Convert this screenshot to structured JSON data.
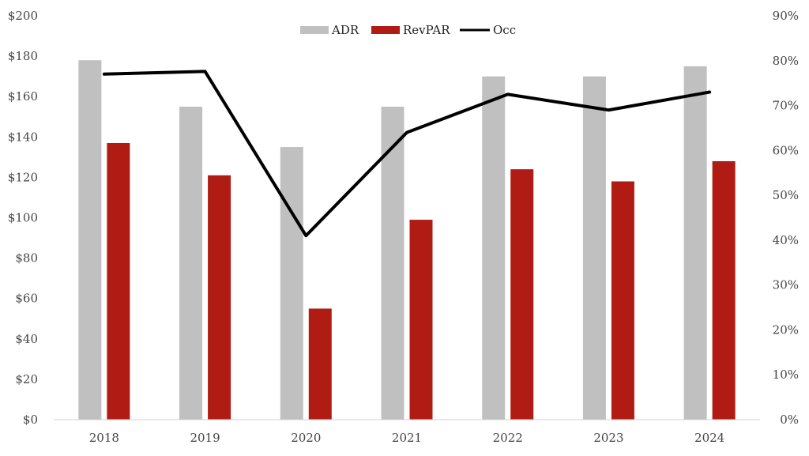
{
  "chart_data": {
    "type": "bar",
    "categories": [
      "2018",
      "2019",
      "2020",
      "2021",
      "2022",
      "2023",
      "2024"
    ],
    "series": [
      {
        "name": "ADR",
        "type": "bar",
        "axis": "left",
        "color": "#c0c0c0",
        "values": [
          178,
          155,
          135,
          155,
          170,
          170,
          175
        ]
      },
      {
        "name": "RevPAR",
        "type": "bar",
        "axis": "left",
        "color": "#b01c14",
        "values": [
          137,
          121,
          55,
          99,
          124,
          118,
          128
        ]
      },
      {
        "name": "Occ",
        "type": "line",
        "axis": "right",
        "color": "#000000",
        "values": [
          0.77,
          0.776,
          0.41,
          0.64,
          0.725,
          0.69,
          0.73
        ]
      }
    ],
    "y_left": {
      "ylim": [
        0,
        200
      ],
      "ticks": [
        0,
        20,
        40,
        60,
        80,
        100,
        120,
        140,
        160,
        180,
        200
      ],
      "tick_labels": [
        "$0",
        "$20",
        "$40",
        "$60",
        "$80",
        "$100",
        "$120",
        "$140",
        "$160",
        "$180",
        "$200"
      ]
    },
    "y_right": {
      "ylim": [
        0,
        0.9
      ],
      "ticks": [
        0,
        0.1,
        0.2,
        0.3,
        0.4,
        0.5,
        0.6,
        0.7,
        0.8,
        0.9
      ],
      "tick_labels": [
        "0%",
        "10%",
        "20%",
        "30%",
        "40%",
        "50%",
        "60%",
        "70%",
        "80%",
        "90%"
      ]
    },
    "legend": {
      "position": "top-center",
      "items": [
        "ADR",
        "RevPAR",
        "Occ"
      ]
    },
    "grid": false
  }
}
